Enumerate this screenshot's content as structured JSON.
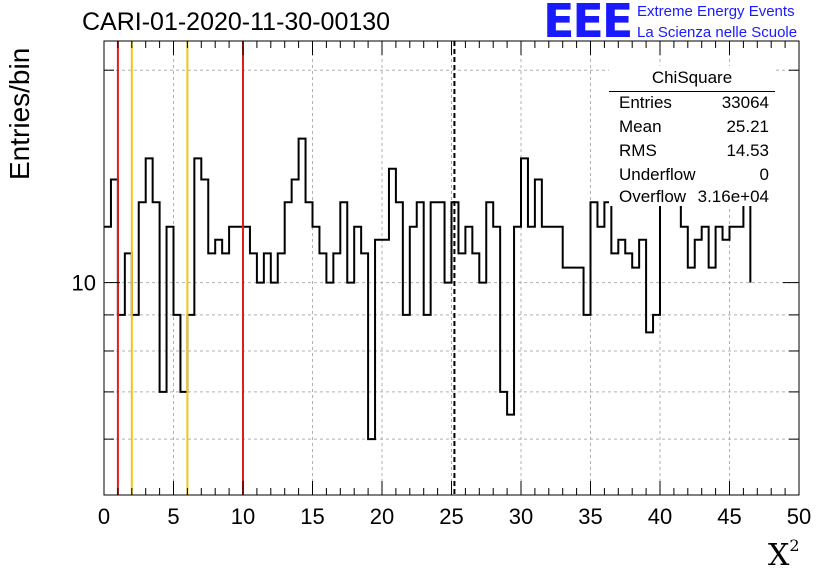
{
  "title": "CARI-01-2020-11-30-00130",
  "logo": {
    "mark": "EEE",
    "line1": "Extreme Energy Events",
    "line2": "La Scienza nelle Scuole",
    "color": "#1a1aff"
  },
  "stats_box": {
    "title": "ChiSquare",
    "rows": [
      {
        "label": "Entries",
        "value": "33064"
      },
      {
        "label": "Mean",
        "value": "25.21"
      },
      {
        "label": "RMS",
        "value": "14.53"
      },
      {
        "label": "Underflow",
        "value": "0"
      },
      {
        "label": "Overflow",
        "value": "3.16e+04"
      }
    ]
  },
  "chart_data": {
    "type": "histogram",
    "title": "CARI-01-2020-11-30-00130",
    "xlabel": "X",
    "xlabel_superscript": "2",
    "ylabel": "Entries/bin",
    "xlim": [
      0,
      50
    ],
    "ylim": [
      5,
      22
    ],
    "yscale": "log",
    "grid": true,
    "bin_width": 0.5,
    "x_ticks": [
      0,
      5,
      10,
      15,
      20,
      25,
      30,
      35,
      40,
      45,
      50
    ],
    "y_tick_labels": [
      {
        "value": 10,
        "label": "10"
      }
    ],
    "values": [
      12,
      14,
      9,
      11,
      9,
      13,
      15,
      13,
      7,
      12,
      9,
      7,
      9,
      15,
      14,
      11,
      11.5,
      11,
      12,
      12,
      12,
      11,
      10,
      11,
      10,
      11,
      13,
      14,
      16,
      13,
      12,
      11,
      10,
      11,
      13,
      10,
      12,
      11,
      6,
      11.5,
      11.5,
      14.5,
      13,
      9,
      12,
      13,
      9,
      13,
      13,
      10,
      13,
      11,
      12,
      11,
      10,
      13,
      12,
      7,
      6.5,
      12,
      15,
      12,
      14,
      12,
      12,
      12,
      10.5,
      10.5,
      10.5,
      9,
      13,
      12,
      13,
      11,
      11.5,
      11,
      10.5,
      11.5,
      8.5,
      9,
      16,
      14,
      14.5,
      12,
      10.5,
      11.5,
      12,
      10.5,
      12,
      11.5,
      12,
      12,
      13
    ],
    "vlines": [
      {
        "x": 1,
        "color": "#e11c1c",
        "style": "solid"
      },
      {
        "x": 2,
        "color": "#f0c419",
        "style": "solid"
      },
      {
        "x": 6,
        "color": "#f0c419",
        "style": "solid"
      },
      {
        "x": 10,
        "color": "#e11c1c",
        "style": "solid"
      },
      {
        "x": 25.21,
        "color": "#000000",
        "style": "dashed"
      }
    ],
    "line_color": "#000000",
    "grid_color": "#b0b0b0"
  }
}
